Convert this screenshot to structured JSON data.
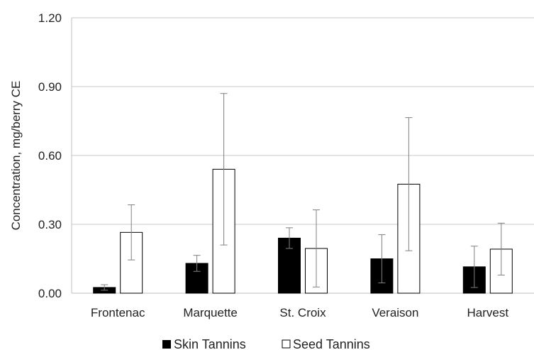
{
  "chart_data": {
    "type": "bar",
    "categories": [
      "Frontenac",
      "Marquette",
      "St. Croix",
      "Veraison",
      "Harvest"
    ],
    "series": [
      {
        "name": "Skin Tannins",
        "values": [
          0.025,
          0.13,
          0.24,
          0.15,
          0.115
        ],
        "errors": [
          0.012,
          0.035,
          0.045,
          0.105,
          0.09
        ],
        "color": "#000000"
      },
      {
        "name": "Seed Tannins",
        "values": [
          0.265,
          0.54,
          0.195,
          0.475,
          0.192
        ],
        "errors": [
          0.12,
          0.33,
          0.168,
          0.29,
          0.113
        ],
        "color": "#ffffff"
      }
    ],
    "ylabel": "Concentration, mg/berry CE",
    "xlabel": "",
    "ylim": [
      0,
      1.2
    ],
    "yticks": [
      "0.00",
      "0.30",
      "0.60",
      "0.90",
      "1.20"
    ],
    "grid": true,
    "legend_position": "bottom",
    "gridline_color": "#c8c8c8",
    "error_bar_color": "#808080"
  }
}
